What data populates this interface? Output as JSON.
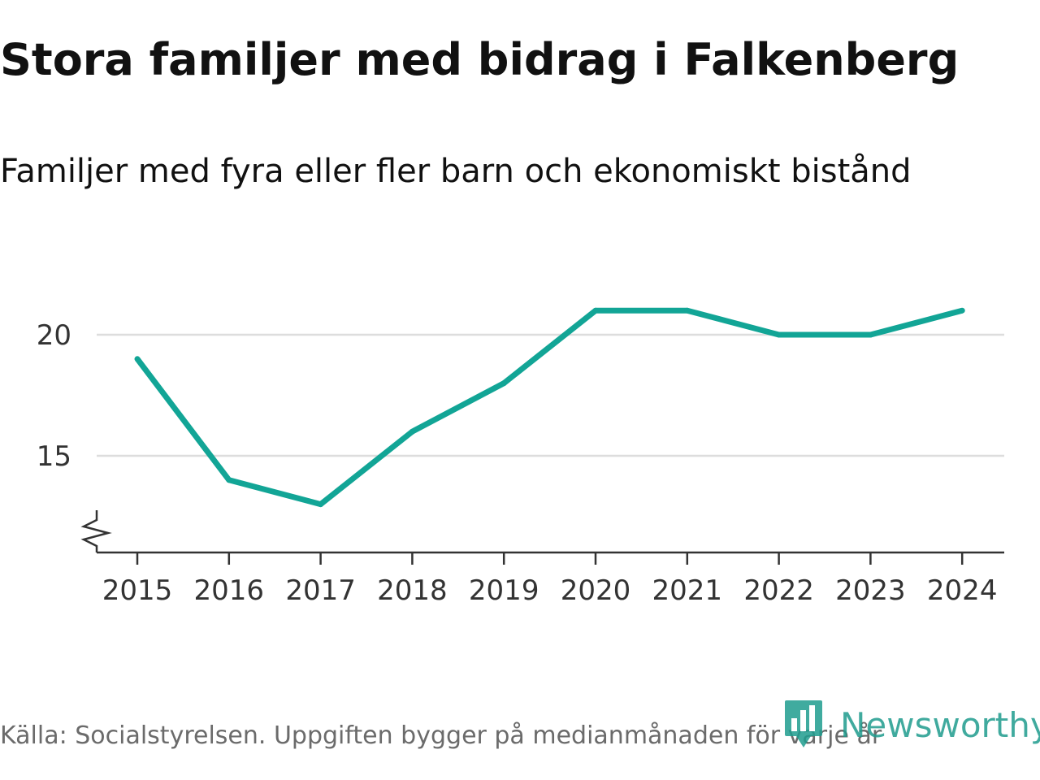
{
  "header": {
    "title": "Stora familjer med bidrag i Falkenberg",
    "subtitle": "Familjer med fyra eller fler barn och ekonomiskt bistånd"
  },
  "footer": {
    "source": "Källa: Socialstyrelsen. Uppgiften bygger på medianmånaden för varje år",
    "logo_text": "Newsworthy"
  },
  "colors": {
    "line": "#12a596",
    "grid": "#dddddd",
    "axis": "#333333",
    "brand": "#1f9c8e"
  },
  "chart_data": {
    "type": "line",
    "title": "Stora familjer med bidrag i Falkenberg",
    "subtitle": "Familjer med fyra eller fler barn och ekonomiskt bistånd",
    "categories": [
      "2015",
      "2016",
      "2017",
      "2018",
      "2019",
      "2020",
      "2021",
      "2022",
      "2023",
      "2024"
    ],
    "series": [
      {
        "values": [
          19,
          14,
          13,
          16,
          18,
          21,
          21,
          20,
          20,
          21
        ]
      }
    ],
    "y_ticks": [
      15,
      20
    ],
    "ylim": [
      11,
      22
    ],
    "y_axis_break": true,
    "grid": true
  }
}
